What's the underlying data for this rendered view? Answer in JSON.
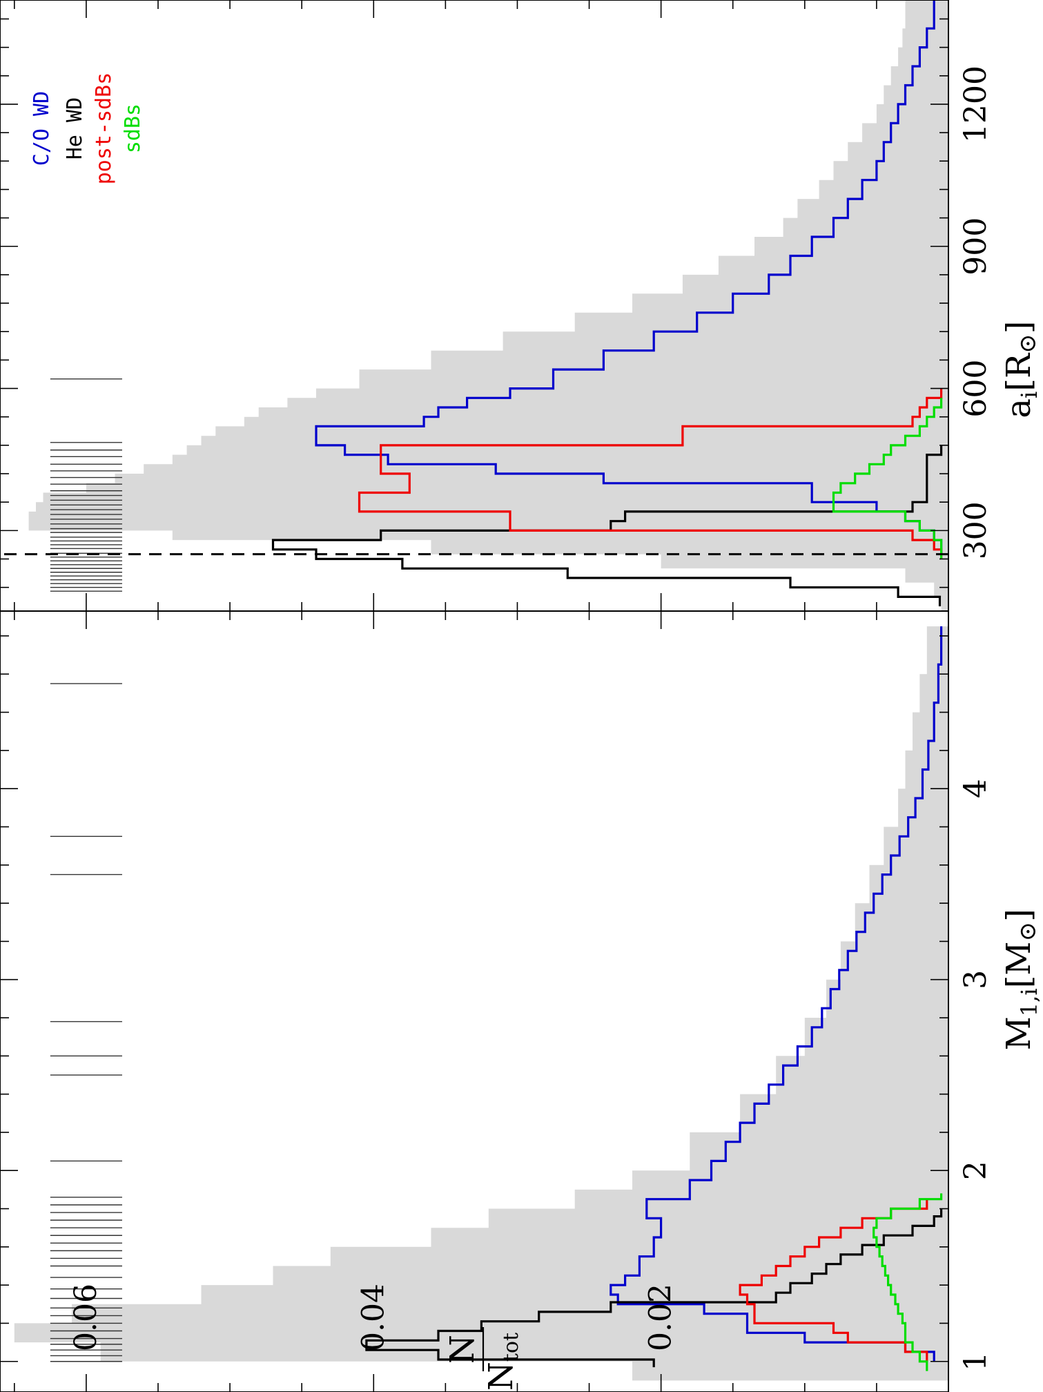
{
  "chart_data": [
    {
      "type": "bar",
      "panel": "a_i",
      "xlabel": "a",
      "xlabel_subscript": "i",
      "xlabel_unit": "[R",
      "xlabel_unit_symbol": "⊙",
      "xlabel_unit_close": "]",
      "xlim": [
        130,
        1420
      ],
      "ylim": [
        0,
        0.066
      ],
      "xticks": [
        300,
        600,
        900,
        1200
      ],
      "ylabel_num": "N",
      "ylabel_den": "N",
      "ylabel_den_sub": "tot",
      "yticks": [
        0.02,
        0.04,
        0.06
      ],
      "ytick_labels": [
        "0.02",
        "0.04",
        "0.06"
      ],
      "dashed_line_x": 250,
      "legend": [
        {
          "label": "C/O WD",
          "color": "#0000cc"
        },
        {
          "label": "He WD",
          "color": "#000000"
        },
        {
          "label": "post-sdBs",
          "color": "#ee0000"
        },
        {
          "label": "sdBs",
          "color": "#00dd00"
        }
      ],
      "observed_marks": [
        172,
        180,
        188,
        196,
        204,
        212,
        220,
        228,
        236,
        244,
        252,
        262,
        270,
        278,
        286,
        296,
        304,
        314,
        324,
        334,
        344,
        354,
        364,
        374,
        384,
        398,
        412,
        426,
        440,
        456,
        470,
        486,
        620
      ],
      "gray_fill": {
        "edges": [
          130,
          160,
          190,
          220,
          250,
          280,
          300,
          320,
          340,
          360,
          380,
          400,
          420,
          440,
          460,
          480,
          500,
          520,
          540,
          560,
          580,
          600,
          640,
          680,
          720,
          760,
          800,
          840,
          880,
          920,
          960,
          1000,
          1040,
          1080,
          1120,
          1160,
          1200,
          1240,
          1280,
          1320,
          1360,
          1400,
          1420
        ],
        "values": [
          0.0005,
          0.001,
          0.003,
          0.02,
          0.036,
          0.054,
          0.064,
          0.064,
          0.0635,
          0.063,
          0.06,
          0.058,
          0.056,
          0.054,
          0.053,
          0.052,
          0.051,
          0.049,
          0.048,
          0.046,
          0.044,
          0.041,
          0.036,
          0.031,
          0.026,
          0.022,
          0.0185,
          0.016,
          0.0135,
          0.0115,
          0.0105,
          0.009,
          0.008,
          0.007,
          0.006,
          0.005,
          0.0045,
          0.004,
          0.0035,
          0.0032,
          0.003,
          0.003
        ]
      },
      "series": [
        {
          "name": "C/O WD",
          "color": "#0000cc",
          "edges": [
            250,
            280,
            300,
            320,
            340,
            360,
            400,
            420,
            440,
            460,
            480,
            500,
            520,
            540,
            560,
            580,
            600,
            640,
            680,
            720,
            760,
            800,
            840,
            880,
            920,
            960,
            1000,
            1040,
            1080,
            1120,
            1160,
            1200,
            1240,
            1280,
            1320,
            1360,
            1400,
            1420
          ],
          "values": [
            0.0005,
            0.001,
            0.002,
            0.003,
            0.005,
            0.0095,
            0.024,
            0.0315,
            0.039,
            0.042,
            0.044,
            0.044,
            0.0365,
            0.0355,
            0.0335,
            0.0305,
            0.0275,
            0.024,
            0.0205,
            0.0175,
            0.015,
            0.0125,
            0.011,
            0.0095,
            0.008,
            0.007,
            0.006,
            0.005,
            0.0045,
            0.004,
            0.0035,
            0.003,
            0.0025,
            0.002,
            0.0015,
            0.001,
            0.001
          ]
        },
        {
          "name": "He WD",
          "color": "#000000",
          "edges": [
            140,
            160,
            180,
            200,
            220,
            240,
            260,
            280,
            300,
            320,
            340,
            360,
            380,
            400,
            420,
            440,
            460,
            480
          ],
          "values": [
            0.0006,
            0.0035,
            0.011,
            0.0265,
            0.038,
            0.044,
            0.047,
            0.0395,
            0.0235,
            0.0225,
            0.0025,
            0.0015,
            0.0015,
            0.0015,
            0.0015,
            0.0015,
            0.0005
          ]
        },
        {
          "name": "post-sdBs",
          "color": "#ee0000",
          "edges": [
            240,
            260,
            280,
            300,
            320,
            340,
            360,
            380,
            400,
            420,
            440,
            460,
            480,
            500,
            520,
            540,
            560,
            580,
            600
          ],
          "values": [
            0.0005,
            0.001,
            0.0025,
            0.0305,
            0.0305,
            0.041,
            0.041,
            0.0375,
            0.0375,
            0.0395,
            0.0395,
            0.0395,
            0.0185,
            0.0185,
            0.0025,
            0.002,
            0.0015,
            0.0005
          ]
        },
        {
          "name": "sdBs",
          "color": "#00dd00",
          "edges": [
            240,
            260,
            280,
            300,
            320,
            340,
            360,
            380,
            400,
            420,
            440,
            460,
            480,
            500,
            520,
            540,
            560,
            580
          ],
          "values": [
            0.0005,
            0.0005,
            0.001,
            0.002,
            0.003,
            0.008,
            0.008,
            0.0075,
            0.0065,
            0.0055,
            0.0045,
            0.004,
            0.003,
            0.002,
            0.0015,
            0.001,
            0.0005
          ]
        }
      ]
    },
    {
      "type": "bar",
      "panel": "M1i",
      "xlabel": "M",
      "xlabel_subscript": "1,i",
      "xlabel_unit": "[M",
      "xlabel_unit_symbol": "⊙",
      "xlabel_unit_close": "]",
      "xlim": [
        0.84,
        4.93
      ],
      "ylim": [
        0,
        0.066
      ],
      "xticks": [
        1,
        2,
        3,
        4
      ],
      "yticks": [
        0.02,
        0.04,
        0.06
      ],
      "observed_marks": [
        1.0,
        1.03,
        1.06,
        1.09,
        1.12,
        1.16,
        1.2,
        1.24,
        1.28,
        1.33,
        1.38,
        1.44,
        1.5,
        1.54,
        1.58,
        1.62,
        1.66,
        1.7,
        1.74,
        1.78,
        1.82,
        1.86,
        2.05,
        2.5,
        2.6,
        2.78,
        3.55,
        3.75,
        4.55
      ],
      "gray_fill": {
        "edges": [
          0.9,
          1.0,
          1.1,
          1.2,
          1.3,
          1.4,
          1.5,
          1.6,
          1.7,
          1.8,
          1.9,
          2.0,
          2.2,
          2.4,
          2.6,
          2.8,
          3.0,
          3.2,
          3.4,
          3.6,
          3.8,
          4.0,
          4.2,
          4.4,
          4.6,
          4.85
        ],
        "values": [
          0.022,
          0.059,
          0.065,
          0.061,
          0.052,
          0.047,
          0.043,
          0.036,
          0.032,
          0.026,
          0.022,
          0.018,
          0.0145,
          0.012,
          0.01,
          0.0085,
          0.0075,
          0.0065,
          0.0055,
          0.0045,
          0.0035,
          0.003,
          0.0025,
          0.002,
          0.0015
        ]
      },
      "series": [
        {
          "name": "C/O WD",
          "color": "#0000cc",
          "edges": [
            1.0,
            1.05,
            1.1,
            1.15,
            1.25,
            1.3,
            1.35,
            1.4,
            1.45,
            1.55,
            1.65,
            1.75,
            1.85,
            1.95,
            2.05,
            2.15,
            2.25,
            2.35,
            2.45,
            2.55,
            2.65,
            2.75,
            2.85,
            2.95,
            3.05,
            3.15,
            3.25,
            3.35,
            3.45,
            3.55,
            3.65,
            3.75,
            3.85,
            3.95,
            4.1,
            4.25,
            4.45,
            4.65,
            4.85
          ],
          "values": [
            0.001,
            0.003,
            0.01,
            0.014,
            0.017,
            0.023,
            0.0235,
            0.0225,
            0.0215,
            0.0205,
            0.02,
            0.021,
            0.018,
            0.0165,
            0.0155,
            0.0145,
            0.0135,
            0.0125,
            0.0115,
            0.0105,
            0.0095,
            0.0088,
            0.0082,
            0.0076,
            0.007,
            0.0064,
            0.0058,
            0.0052,
            0.0046,
            0.004,
            0.0034,
            0.0028,
            0.0023,
            0.0018,
            0.0014,
            0.001,
            0.0007,
            0.0005
          ]
        },
        {
          "name": "He WD",
          "color": "#000000",
          "edges": [
            0.97,
            1.01,
            1.06,
            1.11,
            1.16,
            1.21,
            1.26,
            1.31,
            1.36,
            1.41,
            1.46,
            1.51,
            1.56,
            1.61,
            1.66,
            1.71,
            1.76,
            1.8
          ],
          "values": [
            0.0205,
            0.0355,
            0.0405,
            0.0355,
            0.0325,
            0.0285,
            0.0235,
            0.012,
            0.011,
            0.0095,
            0.0085,
            0.0075,
            0.006,
            0.0045,
            0.0025,
            0.001,
            0.0005
          ]
        },
        {
          "name": "post-sdBs",
          "color": "#ee0000",
          "edges": [
            1.0,
            1.05,
            1.1,
            1.15,
            1.2,
            1.25,
            1.3,
            1.35,
            1.4,
            1.45,
            1.5,
            1.55,
            1.6,
            1.65,
            1.7,
            1.75,
            1.8,
            1.85
          ],
          "values": [
            0.0015,
            0.003,
            0.007,
            0.008,
            0.0135,
            0.0135,
            0.014,
            0.0145,
            0.013,
            0.012,
            0.011,
            0.01,
            0.009,
            0.0075,
            0.006,
            0.004,
            0.0015
          ]
        },
        {
          "name": "sdBs",
          "color": "#00dd00",
          "edges": [
            0.95,
            1.0,
            1.05,
            1.1,
            1.15,
            1.2,
            1.25,
            1.3,
            1.35,
            1.4,
            1.45,
            1.5,
            1.55,
            1.6,
            1.65,
            1.7,
            1.75,
            1.8,
            1.85,
            1.88
          ],
          "values": [
            0.0015,
            0.002,
            0.0025,
            0.003,
            0.003,
            0.0032,
            0.0035,
            0.0037,
            0.004,
            0.0042,
            0.0044,
            0.0046,
            0.0048,
            0.005,
            0.0052,
            0.005,
            0.004,
            0.002,
            0.0005
          ]
        }
      ]
    }
  ]
}
